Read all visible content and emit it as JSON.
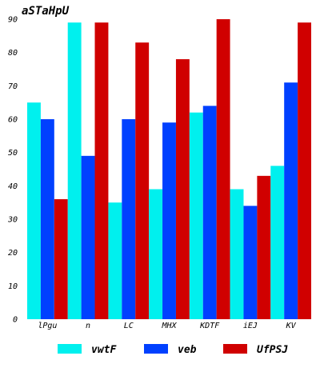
{
  "chart_data": {
    "type": "bar",
    "title": "aSTaHpU",
    "xlabel": "",
    "ylabel": "",
    "categories": [
      "lPgu",
      "n",
      "LC",
      "MHX",
      "KDTF",
      "iEJ",
      "KV"
    ],
    "series": [
      {
        "name": "vwtF",
        "color": "#00f0ee",
        "values": [
          65,
          89,
          35,
          39,
          62,
          39,
          46
        ]
      },
      {
        "name": "veb",
        "color": "#0040ff",
        "values": [
          60,
          49,
          60,
          59,
          64,
          34,
          71
        ]
      },
      {
        "name": "UfPSJ",
        "color": "#d00000",
        "values": [
          36,
          89,
          83,
          78,
          90,
          43,
          89
        ]
      }
    ],
    "ylim": [
      0,
      90
    ],
    "yticks": [
      0,
      10,
      20,
      30,
      40,
      50,
      60,
      70,
      80,
      90
    ],
    "grid": false,
    "legend": "bottom"
  }
}
